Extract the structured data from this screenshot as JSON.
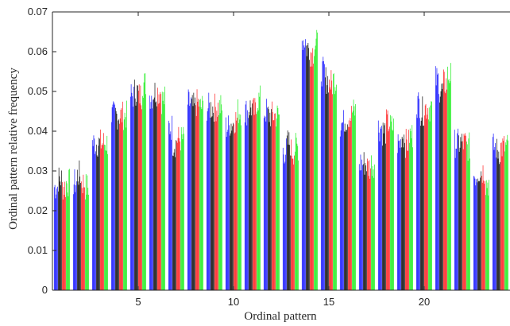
{
  "chart_data": {
    "type": "bar",
    "xlabel": "Ordinal pattern",
    "ylabel": "Ordinal pattern relative frequency",
    "ylim": [
      0,
      0.07
    ],
    "xlim": [
      0.5,
      24.5
    ],
    "yticks": [
      "0",
      "0.01",
      "0.02",
      "0.03",
      "0.04",
      "0.05",
      "0.06",
      "0.07"
    ],
    "xticks": [
      "5",
      "10",
      "15",
      "20"
    ],
    "xtick_values": [
      5,
      10,
      15,
      20
    ],
    "group_colors": [
      "#1a1aff",
      "#111111",
      "#ff2222",
      "#22ee22"
    ],
    "bars_per_color": 6,
    "categories": [
      1,
      2,
      3,
      4,
      5,
      6,
      7,
      8,
      9,
      10,
      11,
      12,
      13,
      14,
      15,
      16,
      17,
      18,
      19,
      20,
      21,
      22,
      23,
      24
    ],
    "series": [
      {
        "values": [
          0.026,
          0.027,
          0.037,
          0.044,
          0.049,
          0.049,
          0.041,
          0.047,
          0.046,
          0.041,
          0.045,
          0.045,
          0.035,
          0.063,
          0.055,
          0.042,
          0.032,
          0.041,
          0.037,
          0.047,
          0.053,
          0.037,
          0.029,
          0.036
        ]
      },
      {
        "values": [
          0.028,
          0.029,
          0.037,
          0.044,
          0.05,
          0.05,
          0.037,
          0.046,
          0.046,
          0.042,
          0.046,
          0.044,
          0.037,
          0.061,
          0.053,
          0.043,
          0.032,
          0.04,
          0.039,
          0.045,
          0.05,
          0.037,
          0.03,
          0.035
        ]
      },
      {
        "values": [
          0.026,
          0.027,
          0.037,
          0.044,
          0.049,
          0.05,
          0.038,
          0.047,
          0.046,
          0.043,
          0.045,
          0.044,
          0.035,
          0.06,
          0.052,
          0.044,
          0.031,
          0.042,
          0.037,
          0.046,
          0.052,
          0.037,
          0.03,
          0.036
        ]
      },
      {
        "values": [
          0.027,
          0.026,
          0.037,
          0.044,
          0.052,
          0.048,
          0.038,
          0.046,
          0.046,
          0.045,
          0.048,
          0.044,
          0.036,
          0.062,
          0.053,
          0.045,
          0.032,
          0.041,
          0.039,
          0.046,
          0.054,
          0.036,
          0.027,
          0.036
        ]
      }
    ]
  }
}
